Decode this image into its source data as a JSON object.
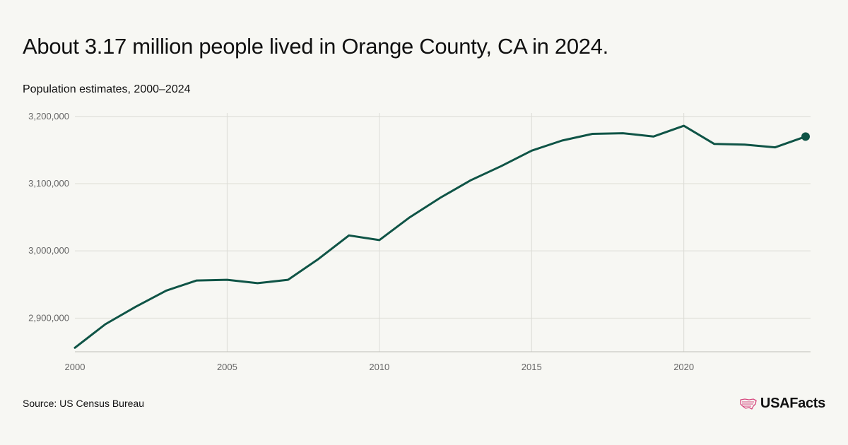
{
  "header": {
    "title": "About 3.17 million people lived in Orange County, CA in 2024.",
    "subtitle": "Population estimates, 2000–2024"
  },
  "footer": {
    "source": "Source: US Census Bureau",
    "logo_text": "USAFacts",
    "logo_icon": "us-map-flag-icon"
  },
  "colors": {
    "line": "#0f5446",
    "grid": "#dcdcd6",
    "background": "#f7f7f3",
    "logo_accent": "#d6477e"
  },
  "chart_data": {
    "type": "line",
    "x": [
      2000,
      2001,
      2002,
      2003,
      2004,
      2005,
      2006,
      2007,
      2008,
      2009,
      2010,
      2011,
      2012,
      2013,
      2014,
      2015,
      2016,
      2017,
      2018,
      2019,
      2020,
      2021,
      2022,
      2023,
      2024
    ],
    "values": [
      2856000,
      2891000,
      2917000,
      2941000,
      2956000,
      2957000,
      2952000,
      2957000,
      2988000,
      3023000,
      3016000,
      3050000,
      3079000,
      3105000,
      3126000,
      3149000,
      3164000,
      3174000,
      3175000,
      3170000,
      3186000,
      3159000,
      3158000,
      3154000,
      3170000
    ],
    "xticks": [
      2000,
      2005,
      2010,
      2015,
      2020
    ],
    "xtick_labels": [
      "2000",
      "2005",
      "2010",
      "2015",
      "2020"
    ],
    "yticks": [
      2900000,
      3000000,
      3100000,
      3200000
    ],
    "ytick_labels": [
      "2,900,000",
      "3,000,000",
      "3,100,000",
      "3,200,000"
    ],
    "xlim": [
      2000,
      2024
    ],
    "ylim": [
      2850000,
      3205000
    ],
    "grid": true,
    "highlight_last_point": true,
    "title": "About 3.17 million people lived in Orange County, CA in 2024.",
    "xlabel": "",
    "ylabel": ""
  }
}
